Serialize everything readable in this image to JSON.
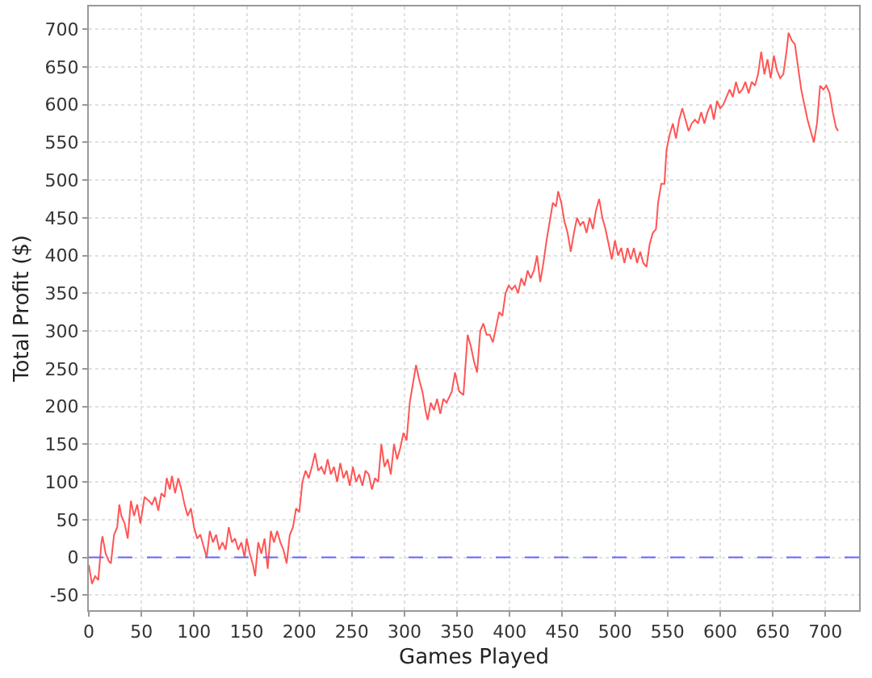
{
  "chart_data": {
    "type": "line",
    "xlabel": "Games Played",
    "ylabel": "Total Profit ($)",
    "x": [
      0,
      3,
      6,
      9,
      12,
      13,
      16,
      19,
      21,
      24,
      27,
      29,
      31,
      34,
      37,
      40,
      43,
      46,
      49,
      53,
      57,
      60,
      63,
      66,
      69,
      72,
      74,
      77,
      79,
      82,
      85,
      88,
      91,
      94,
      97,
      100,
      103,
      106,
      109,
      112,
      115,
      118,
      121,
      124,
      127,
      130,
      133,
      136,
      139,
      142,
      145,
      148,
      150,
      153,
      156,
      158,
      161,
      164,
      167,
      170,
      173,
      176,
      179,
      182,
      185,
      188,
      191,
      194,
      197,
      200,
      203,
      206,
      209,
      212,
      215,
      218,
      221,
      224,
      227,
      230,
      233,
      236,
      239,
      242,
      245,
      248,
      251,
      254,
      257,
      260,
      263,
      266,
      269,
      272,
      275,
      278,
      281,
      284,
      287,
      290,
      293,
      296,
      299,
      302,
      305,
      308,
      311,
      314,
      317,
      320,
      322,
      325,
      328,
      331,
      334,
      337,
      340,
      345,
      348,
      352,
      356,
      360,
      363,
      366,
      369,
      372,
      375,
      378,
      381,
      384,
      387,
      390,
      393,
      396,
      399,
      402,
      405,
      408,
      411,
      414,
      417,
      420,
      423,
      426,
      429,
      432,
      435,
      438,
      441,
      444,
      446,
      449,
      452,
      455,
      458,
      461,
      464,
      467,
      470,
      473,
      476,
      479,
      482,
      485,
      488,
      491,
      494,
      497,
      500,
      503,
      506,
      509,
      512,
      515,
      518,
      521,
      524,
      527,
      530,
      533,
      536,
      539,
      541,
      544,
      547,
      549,
      552,
      555,
      558,
      561,
      564,
      567,
      570,
      573,
      576,
      579,
      582,
      585,
      588,
      591,
      594,
      597,
      600,
      603,
      606,
      609,
      612,
      615,
      618,
      621,
      624,
      627,
      630,
      633,
      636,
      639,
      642,
      645,
      648,
      651,
      654,
      657,
      660,
      663,
      665,
      668,
      671,
      674,
      677,
      680,
      683,
      686,
      689,
      692,
      695,
      698,
      701,
      704,
      707,
      710,
      712
    ],
    "series": [
      {
        "color": "#ff5555",
        "values": [
          -10,
          -35,
          -25,
          -30,
          20,
          28,
          5,
          -5,
          -8,
          30,
          40,
          70,
          55,
          45,
          25,
          75,
          55,
          70,
          45,
          80,
          75,
          70,
          80,
          62,
          85,
          80,
          105,
          90,
          108,
          85,
          105,
          90,
          70,
          55,
          65,
          40,
          25,
          30,
          15,
          0,
          35,
          20,
          30,
          10,
          20,
          10,
          40,
          20,
          25,
          10,
          20,
          0,
          25,
          5,
          -10,
          -25,
          20,
          5,
          25,
          -15,
          35,
          20,
          35,
          20,
          10,
          -8,
          30,
          40,
          65,
          60,
          100,
          115,
          105,
          120,
          138,
          115,
          120,
          110,
          130,
          110,
          120,
          100,
          125,
          105,
          115,
          95,
          120,
          100,
          110,
          95,
          115,
          110,
          90,
          105,
          100,
          150,
          120,
          130,
          110,
          150,
          130,
          145,
          165,
          155,
          205,
          230,
          255,
          235,
          220,
          195,
          182,
          205,
          195,
          210,
          190,
          210,
          205,
          220,
          245,
          220,
          215,
          295,
          280,
          260,
          245,
          300,
          310,
          295,
          295,
          285,
          305,
          325,
          320,
          350,
          360,
          355,
          360,
          350,
          370,
          360,
          380,
          370,
          380,
          400,
          365,
          390,
          420,
          445,
          470,
          465,
          485,
          470,
          445,
          430,
          405,
          430,
          450,
          440,
          445,
          430,
          450,
          435,
          460,
          475,
          450,
          435,
          415,
          395,
          420,
          400,
          410,
          390,
          410,
          395,
          410,
          390,
          405,
          390,
          385,
          415,
          430,
          435,
          470,
          495,
          495,
          540,
          560,
          575,
          555,
          580,
          595,
          580,
          565,
          575,
          580,
          575,
          590,
          575,
          590,
          600,
          580,
          605,
          595,
          600,
          610,
          620,
          610,
          630,
          615,
          620,
          630,
          615,
          630,
          625,
          640,
          670,
          640,
          660,
          635,
          665,
          645,
          635,
          640,
          670,
          695,
          685,
          680,
          650,
          620,
          600,
          580,
          565,
          550,
          575,
          625,
          620,
          625,
          615,
          590,
          570,
          565
        ]
      }
    ],
    "xlim": [
      0,
      732
    ],
    "ylim": [
      -70,
      730
    ],
    "xticks": [
      0,
      50,
      100,
      150,
      200,
      250,
      300,
      350,
      400,
      450,
      500,
      550,
      600,
      650,
      700
    ],
    "yticks": [
      -50,
      0,
      50,
      100,
      150,
      200,
      250,
      300,
      350,
      400,
      450,
      500,
      550,
      600,
      650,
      700
    ],
    "grid": true,
    "marker": "none",
    "line_style": "solid",
    "ref_lines": [
      {
        "axis": "y",
        "value": 0,
        "color": "#6666ff",
        "line_style": "dashed"
      }
    ]
  }
}
